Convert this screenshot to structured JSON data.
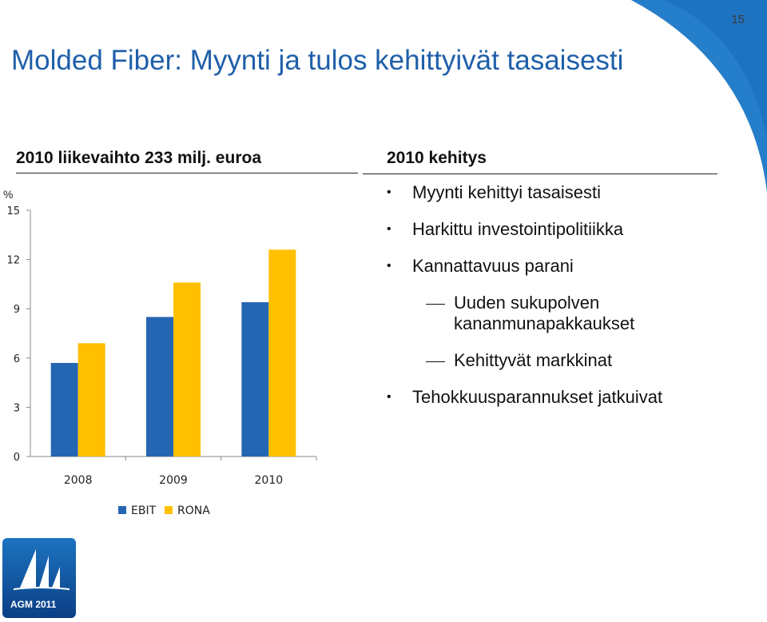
{
  "page_number": "15",
  "title": "Molded Fiber: Myynti ja tulos kehittyivät tasaisesti",
  "chart_heading": "2010 liikevaihto 233 milj. euroa",
  "development_heading": "2010 kehitys",
  "bullets": [
    {
      "type": "main",
      "text": "Myynti kehittyi tasaisesti"
    },
    {
      "type": "main",
      "text": "Harkittu investointipolitiikka"
    },
    {
      "type": "main",
      "text": "Kannattavuus parani"
    },
    {
      "type": "sub",
      "text": "Uuden sukupolven kananmunapakkaukset"
    },
    {
      "type": "sub",
      "text": "Kehittyvät markkinat"
    },
    {
      "type": "main",
      "text": "Tehokkuusparannukset jatkuivat"
    }
  ],
  "logo": {
    "text": "AGM 2011"
  },
  "colors": {
    "title": "#1f5fa9",
    "ebit": "#2566b3",
    "rona": "#ffc000",
    "corner": "#1d73c0"
  },
  "chart_data": {
    "type": "bar",
    "categories": [
      "2008",
      "2009",
      "2010"
    ],
    "series": [
      {
        "name": "EBIT",
        "values": [
          5.7,
          8.5,
          9.4
        ]
      },
      {
        "name": "RONA",
        "values": [
          6.9,
          10.6,
          12.6
        ]
      }
    ],
    "ylabel": "%",
    "yticks": [
      0,
      3,
      6,
      9,
      12,
      15
    ],
    "ylim": [
      0,
      15
    ],
    "grid": false,
    "legend_position": "bottom"
  }
}
